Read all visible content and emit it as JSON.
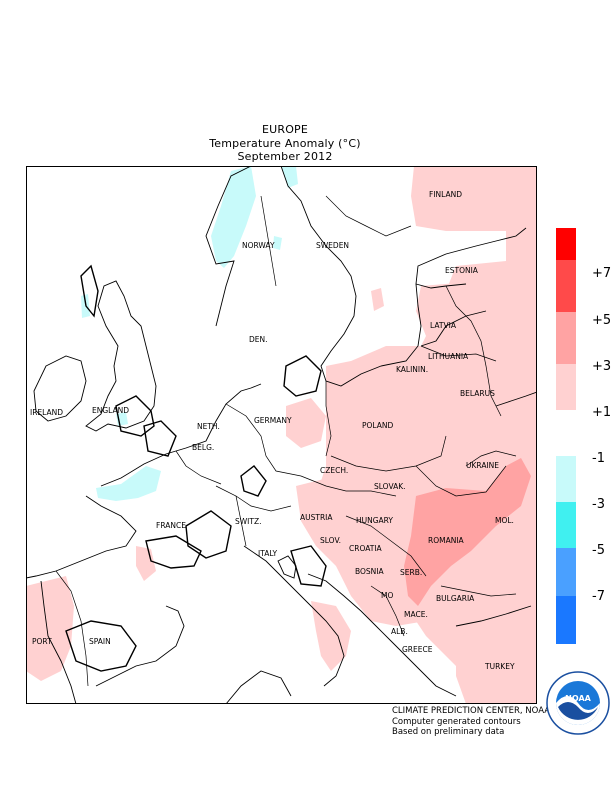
{
  "title": {
    "line1": "EUROPE",
    "line2": "Temperature Anomaly (°C)",
    "line3": "September 2012"
  },
  "countries": {
    "finland": "FINLAND",
    "norway": "NORWAY",
    "sweden": "SWEDEN",
    "estonia": "ESTONIA",
    "latvia": "LATVIA",
    "lithuania": "LITHUANIA",
    "kalinin": "KALININ.",
    "belarus": "BELARUS",
    "den": "DEN.",
    "england": "ENGLAND",
    "ireland": "IRELAND",
    "neth": "NETH.",
    "belg": "BELG.",
    "germany": "GERMANY",
    "poland": "POLAND",
    "czech": "CZECH.",
    "slovak": "SLOVAK.",
    "ukraine": "UKRAINE",
    "france": "FRANCE",
    "switz": "SWITZ.",
    "austria": "AUSTRIA",
    "hungary": "HUNGARY",
    "mol": "MOL.",
    "romania": "ROMANIA",
    "slov": "SLOV.",
    "croatia": "CROATIA",
    "italy": "ITALY",
    "bosnia": "BOSNIA",
    "serb": "SERB.",
    "mo": "MO",
    "bulgaria": "BULGARIA",
    "mace": "MACE.",
    "alb": "ALB.",
    "greece": "GREECE",
    "turkey": "TURKEY",
    "port": "PORT.",
    "spain": "SPAIN"
  },
  "legend": {
    "boxes": [
      {
        "color": "#ff0000"
      },
      {
        "color": "#ff4a4a"
      },
      {
        "color": "#ffa3a3"
      },
      {
        "color": "#ffd1d1"
      },
      {
        "color": "#ffffff"
      },
      {
        "color": "#c8fafa"
      },
      {
        "color": "#40f0f0"
      },
      {
        "color": "#4aa0ff"
      },
      {
        "color": "#1a78ff"
      }
    ],
    "labels": [
      "+7",
      "+5",
      "+3",
      "+1",
      "-1",
      "-3",
      "-5",
      "-7"
    ]
  },
  "credits": {
    "line1": "CLIMATE PREDICTION CENTER, NOAA",
    "line2": "Computer generated contours",
    "line3": "Based on preliminary data"
  },
  "logo": {
    "name": "NOAA",
    "ring_text": "NATIONAL OCEANIC AND ATMOSPHERIC ADMINISTRATION · U.S. DEPARTMENT OF COMMERCE"
  },
  "colors": {
    "light_warm": "#ffd1d1",
    "medium_warm": "#ffa3a3",
    "light_cool": "#c8fafa",
    "frame": "#000000"
  }
}
